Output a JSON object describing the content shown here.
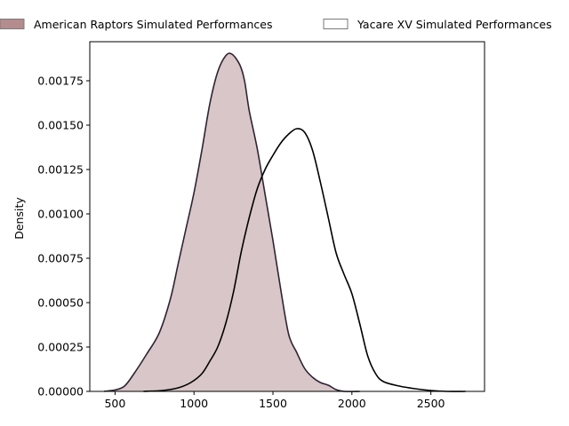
{
  "chart_data": {
    "type": "area",
    "title": "",
    "xlabel": "",
    "ylabel": "Density",
    "xlim": [
      340,
      2840
    ],
    "ylim": [
      0,
      0.00197
    ],
    "grid": false,
    "legend_position": "top, outside plot, horizontal",
    "x_ticks": [
      500,
      1000,
      1500,
      2000,
      2500
    ],
    "y_ticks": [
      {
        "value": 0.0,
        "label": "0.00000"
      },
      {
        "value": 0.00025,
        "label": "0.00025"
      },
      {
        "value": 0.0005,
        "label": "0.00050"
      },
      {
        "value": 0.00075,
        "label": "0.00075"
      },
      {
        "value": 0.001,
        "label": "0.00100"
      },
      {
        "value": 0.00125,
        "label": "0.00125"
      },
      {
        "value": 0.0015,
        "label": "0.00150"
      },
      {
        "value": 0.00175,
        "label": "0.00175"
      }
    ],
    "series": [
      {
        "name": "American Raptors Simulated Performances",
        "fill": true,
        "fill_color": "#d8c6c8",
        "legend_swatch_color": "#b48c8e",
        "line_color": "#2e2433",
        "points": [
          [
            430,
            0.0
          ],
          [
            500,
            8e-06
          ],
          [
            560,
            3e-05
          ],
          [
            620,
            0.0001
          ],
          [
            700,
            0.00021
          ],
          [
            780,
            0.00033
          ],
          [
            850,
            0.00052
          ],
          [
            900,
            0.00072
          ],
          [
            950,
            0.00092
          ],
          [
            1000,
            0.00112
          ],
          [
            1050,
            0.00136
          ],
          [
            1100,
            0.00162
          ],
          [
            1150,
            0.0018
          ],
          [
            1200,
            0.00189
          ],
          [
            1240,
            0.0019
          ],
          [
            1290,
            0.00184
          ],
          [
            1320,
            0.00175
          ],
          [
            1350,
            0.00158
          ],
          [
            1400,
            0.00137
          ],
          [
            1450,
            0.00111
          ],
          [
            1500,
            0.00085
          ],
          [
            1550,
            0.00057
          ],
          [
            1600,
            0.00032
          ],
          [
            1650,
            0.00022
          ],
          [
            1700,
            0.00013
          ],
          [
            1750,
            8e-05
          ],
          [
            1800,
            5e-05
          ],
          [
            1850,
            3.5e-05
          ],
          [
            1900,
            1e-05
          ],
          [
            1950,
            0.0
          ],
          [
            2050,
            0.0
          ]
        ]
      },
      {
        "name": "Yacare XV Simulated Performances",
        "fill": false,
        "fill_color": "#ffffff",
        "legend_swatch_color": "#ffffff",
        "line_color": "#000000",
        "points": [
          [
            680,
            0.0
          ],
          [
            800,
            5e-06
          ],
          [
            900,
            2e-05
          ],
          [
            980,
            5e-05
          ],
          [
            1050,
            0.0001
          ],
          [
            1100,
            0.00017
          ],
          [
            1150,
            0.00025
          ],
          [
            1200,
            0.00038
          ],
          [
            1250,
            0.00056
          ],
          [
            1300,
            0.00079
          ],
          [
            1350,
            0.00098
          ],
          [
            1400,
            0.00114
          ],
          [
            1450,
            0.00125
          ],
          [
            1500,
            0.00133
          ],
          [
            1550,
            0.0014
          ],
          [
            1600,
            0.00145
          ],
          [
            1650,
            0.00148
          ],
          [
            1700,
            0.00146
          ],
          [
            1750,
            0.00136
          ],
          [
            1800,
            0.00118
          ],
          [
            1850,
            0.00098
          ],
          [
            1900,
            0.00078
          ],
          [
            1950,
            0.00066
          ],
          [
            2000,
            0.00055
          ],
          [
            2050,
            0.00038
          ],
          [
            2100,
            0.0002
          ],
          [
            2150,
            0.0001
          ],
          [
            2200,
            5.5e-05
          ],
          [
            2300,
            3e-05
          ],
          [
            2400,
            1.5e-05
          ],
          [
            2500,
            5e-06
          ],
          [
            2600,
            0.0
          ],
          [
            2720,
            0.0
          ]
        ]
      }
    ]
  }
}
